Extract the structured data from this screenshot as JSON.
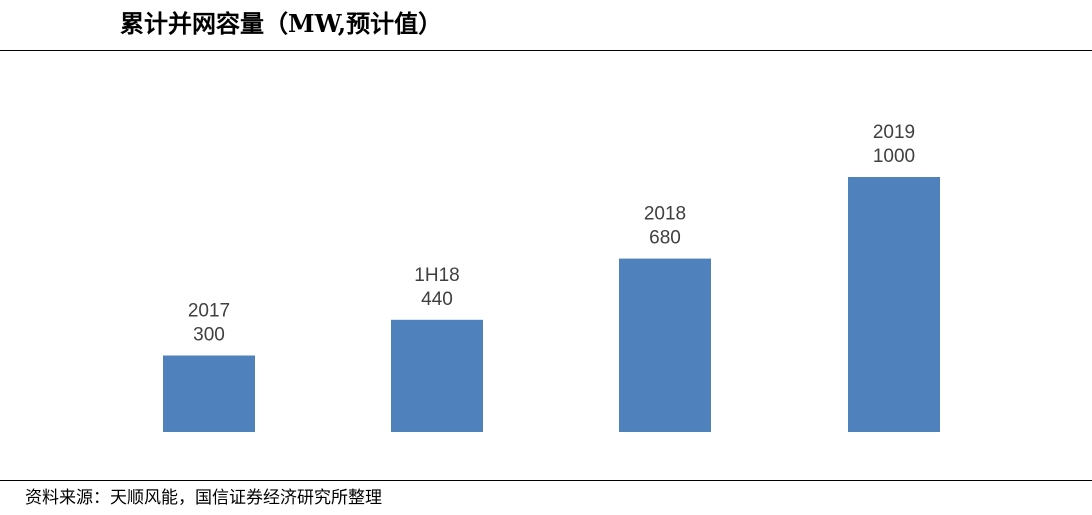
{
  "header": {
    "title": "累计并网容量（MW,预计值）"
  },
  "footer": {
    "source": "资料来源：天顺风能，国信证券经济研究所整理"
  },
  "colors": {
    "bar": "#4f81bd",
    "label": "#404040",
    "rule": "#000000"
  },
  "chart_data": {
    "type": "bar",
    "title": "累计并网容量（MW,预计值）",
    "xlabel": "",
    "ylabel": "",
    "categories": [
      "2017",
      "1H18",
      "2018",
      "2019"
    ],
    "values": [
      300,
      440,
      680,
      1000
    ],
    "ylim": [
      0,
      1000
    ],
    "grid": false,
    "legend": "none"
  }
}
